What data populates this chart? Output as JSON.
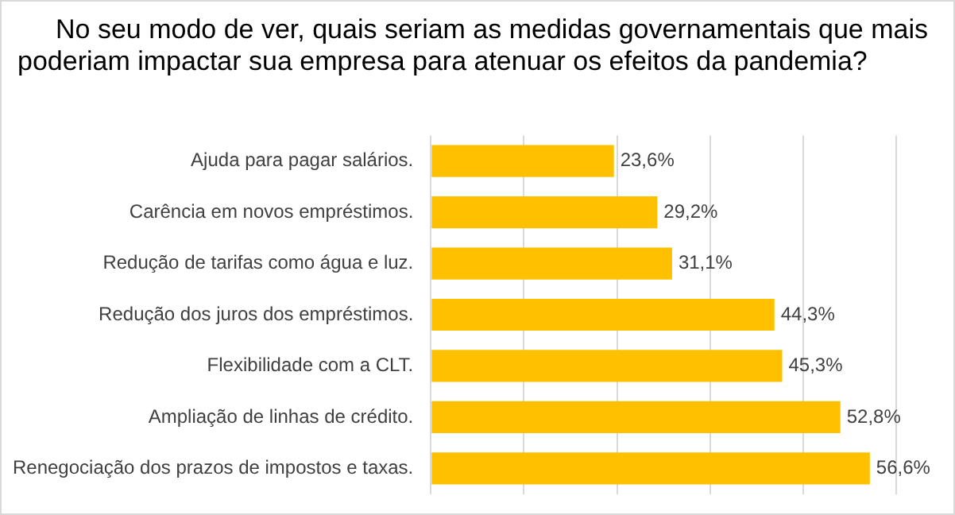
{
  "chart_data": {
    "type": "bar",
    "orientation": "horizontal",
    "title": "No seu modo de ver, quais seriam as medidas governamentais que mais poderiam impactar sua empresa para atenuar os efeitos da pandemia?",
    "categories": [
      "Ajuda para pagar salários.",
      "Carência em novos empréstimos.",
      "Redução de tarifas como água e luz.",
      "Redução dos juros dos empréstimos.",
      "Flexibilidade com a CLT.",
      "Ampliação de linhas de crédito.",
      "Renegociação dos prazos de impostos e taxas."
    ],
    "values": [
      23.6,
      29.2,
      31.1,
      44.3,
      45.3,
      52.8,
      56.6
    ],
    "value_labels": [
      "23,6%",
      "29,2%",
      "31,1%",
      "44,3%",
      "45,3%",
      "52,8%",
      "56,6%"
    ],
    "color": "#ffc000",
    "xlim": [
      0,
      60
    ],
    "xticks": [
      {
        "value": 0,
        "label": null
      },
      {
        "value": 12,
        "label": null
      },
      {
        "value": 24,
        "label": null
      },
      {
        "value": 36,
        "label": null
      },
      {
        "value": 48,
        "label": null
      },
      {
        "value": 60,
        "label": null
      }
    ],
    "grid": "x",
    "tick_labels": "y",
    "legend": false
  }
}
